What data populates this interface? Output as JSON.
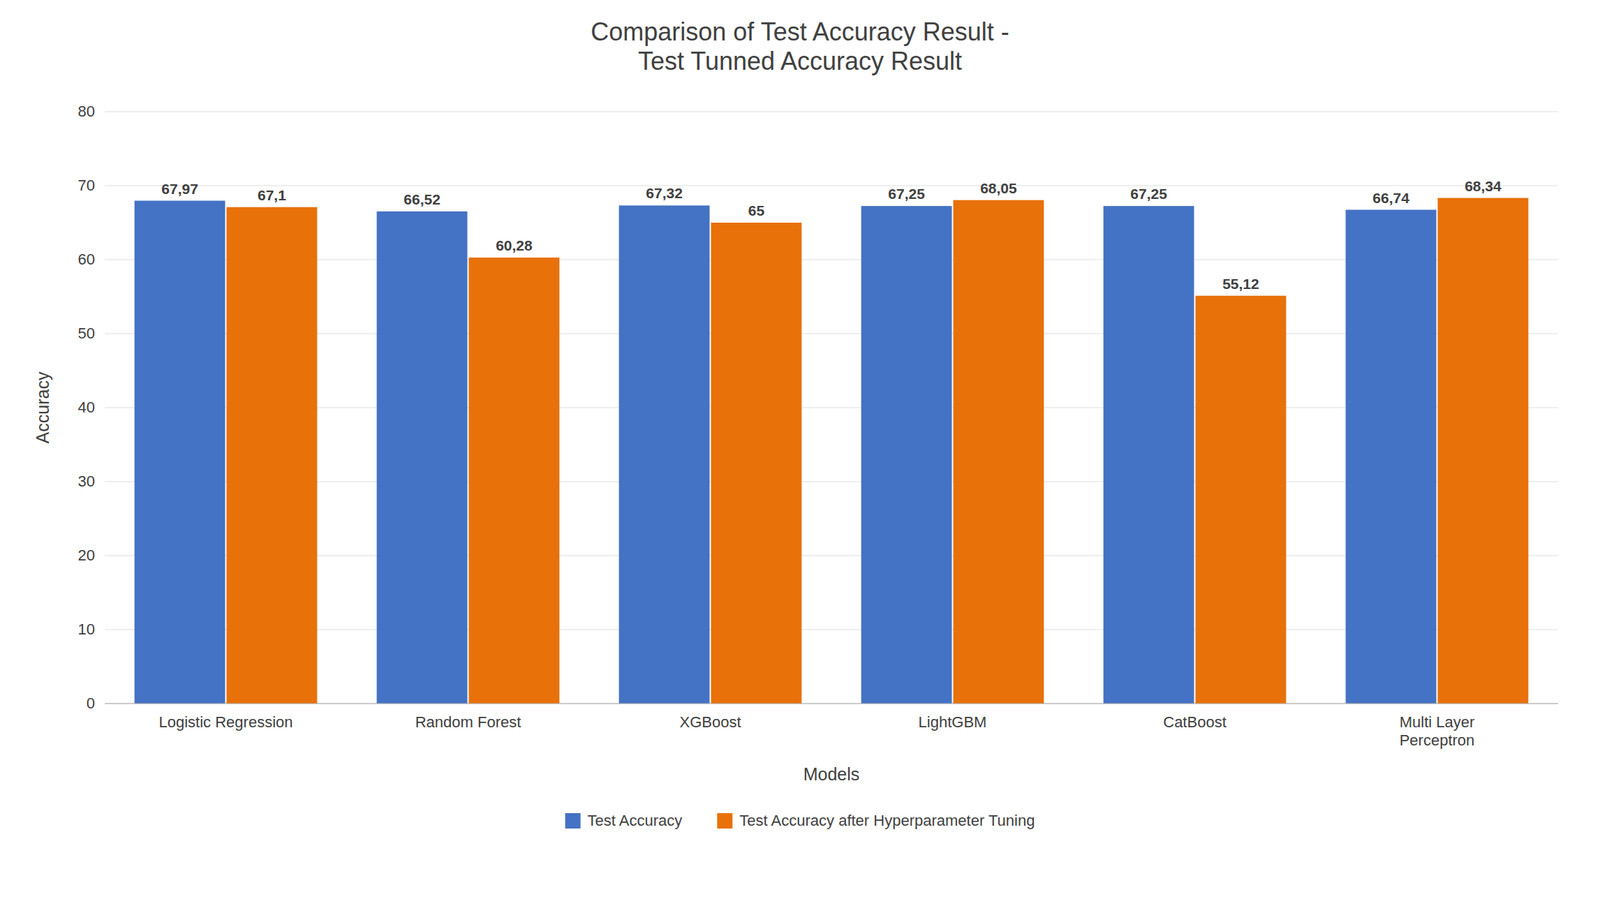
{
  "chart_data": {
    "type": "bar",
    "title": "Comparison of Test Accuracy Result -\nTest Tunned Accuracy Result",
    "x_label": "Models",
    "y_label": "Accuracy",
    "categories": [
      "Logistic Regression",
      "Random Forest",
      "XGBoost",
      "LightGBM",
      "CatBoost",
      "Multi Layer\nPerceptron"
    ],
    "series": [
      {
        "name": "Test Accuracy",
        "color": "#4472C4",
        "values": [
          67.97,
          66.52,
          67.32,
          67.25,
          67.25,
          66.74
        ],
        "value_labels": [
          "67,97",
          "66,52",
          "67,32",
          "67,25",
          "67,25",
          "66,74"
        ]
      },
      {
        "name": "Test Accuracy after Hyperparameter Tuning",
        "color": "#E8710A",
        "values": [
          67.1,
          60.28,
          65.0,
          68.05,
          55.12,
          68.34
        ],
        "value_labels": [
          "67,1",
          "60,28",
          "65",
          "68,05",
          "55,12",
          "68,34"
        ]
      }
    ],
    "ylim": [
      0,
      80
    ],
    "yticks": [
      0,
      10,
      20,
      30,
      40,
      50,
      60,
      70,
      80
    ],
    "grid": true,
    "legend": "bottom",
    "data_labels": true
  }
}
